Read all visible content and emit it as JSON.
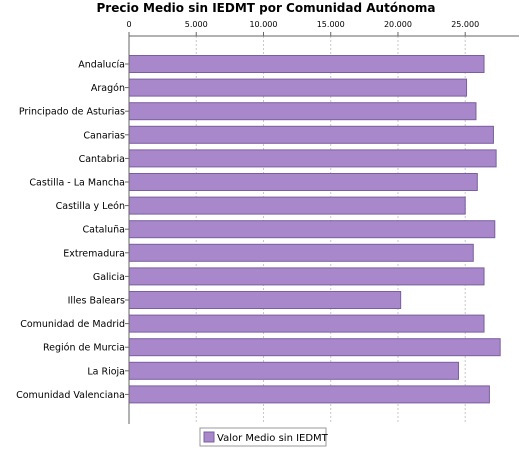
{
  "chart_data": {
    "type": "bar",
    "orientation": "horizontal",
    "title": "Precio Medio sin IEDMT por Comunidad Autónoma",
    "xlabel": "",
    "ylabel": "",
    "xlim": [
      0,
      29000
    ],
    "x_ticks": [
      0,
      5000,
      10000,
      15000,
      20000,
      25000
    ],
    "x_tick_labels": [
      "0",
      "5.000",
      "10.000",
      "15.000",
      "20.000",
      "25.000"
    ],
    "x_axis_position": "top",
    "grid": "vertical-dashed",
    "legend_position": "bottom-center",
    "categories": [
      "Andalucía",
      "Aragón",
      "Principado de Asturias",
      "Canarias",
      "Cantabria",
      "Castilla - La Mancha",
      "Castilla y León",
      "Cataluña",
      "Extremadura",
      "Galicia",
      "Illes Balears",
      "Comunidad de Madrid",
      "Región de Murcia",
      "La Rioja",
      "Comunidad Valenciana"
    ],
    "series": [
      {
        "name": "Valor Medio sin IEDMT",
        "color": "#a887ca",
        "stroke": "#7a5fa0",
        "values": [
          26400,
          25100,
          25800,
          27100,
          27300,
          25900,
          25000,
          27200,
          25600,
          26400,
          20200,
          26400,
          27600,
          24500,
          26800
        ]
      }
    ]
  }
}
